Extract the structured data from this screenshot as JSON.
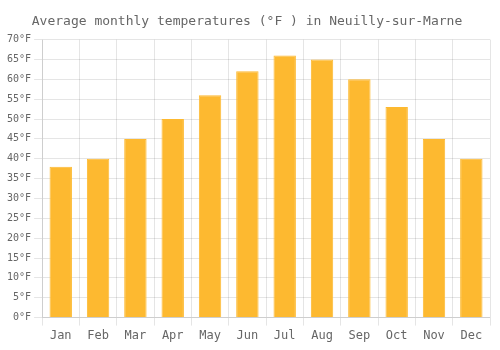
{
  "chart_data": {
    "type": "bar",
    "title": "Average monthly temperatures (°F ) in Neuilly-sur-Marne",
    "categories": [
      "Jan",
      "Feb",
      "Mar",
      "Apr",
      "May",
      "Jun",
      "Jul",
      "Aug",
      "Sep",
      "Oct",
      "Nov",
      "Dec"
    ],
    "values": [
      38,
      40,
      45,
      50,
      56,
      62,
      66,
      65,
      60,
      53,
      45,
      40
    ],
    "color": "#FDB930",
    "ylim": [
      0,
      70
    ],
    "yticks": [
      {
        "value": 0,
        "label": "0°F"
      },
      {
        "value": 5,
        "label": "5°F"
      },
      {
        "value": 10,
        "label": "10°F"
      },
      {
        "value": 15,
        "label": "15°F"
      },
      {
        "value": 20,
        "label": "20°F"
      },
      {
        "value": 25,
        "label": "25°F"
      },
      {
        "value": 30,
        "label": "30°F"
      },
      {
        "value": 35,
        "label": "35°F"
      },
      {
        "value": 40,
        "label": "40°F"
      },
      {
        "value": 45,
        "label": "45°F"
      },
      {
        "value": 50,
        "label": "50°F"
      },
      {
        "value": 55,
        "label": "55°F"
      },
      {
        "value": 60,
        "label": "60°F"
      },
      {
        "value": 65,
        "label": "65°F"
      },
      {
        "value": 70,
        "label": "70°F"
      }
    ],
    "grid": true
  }
}
